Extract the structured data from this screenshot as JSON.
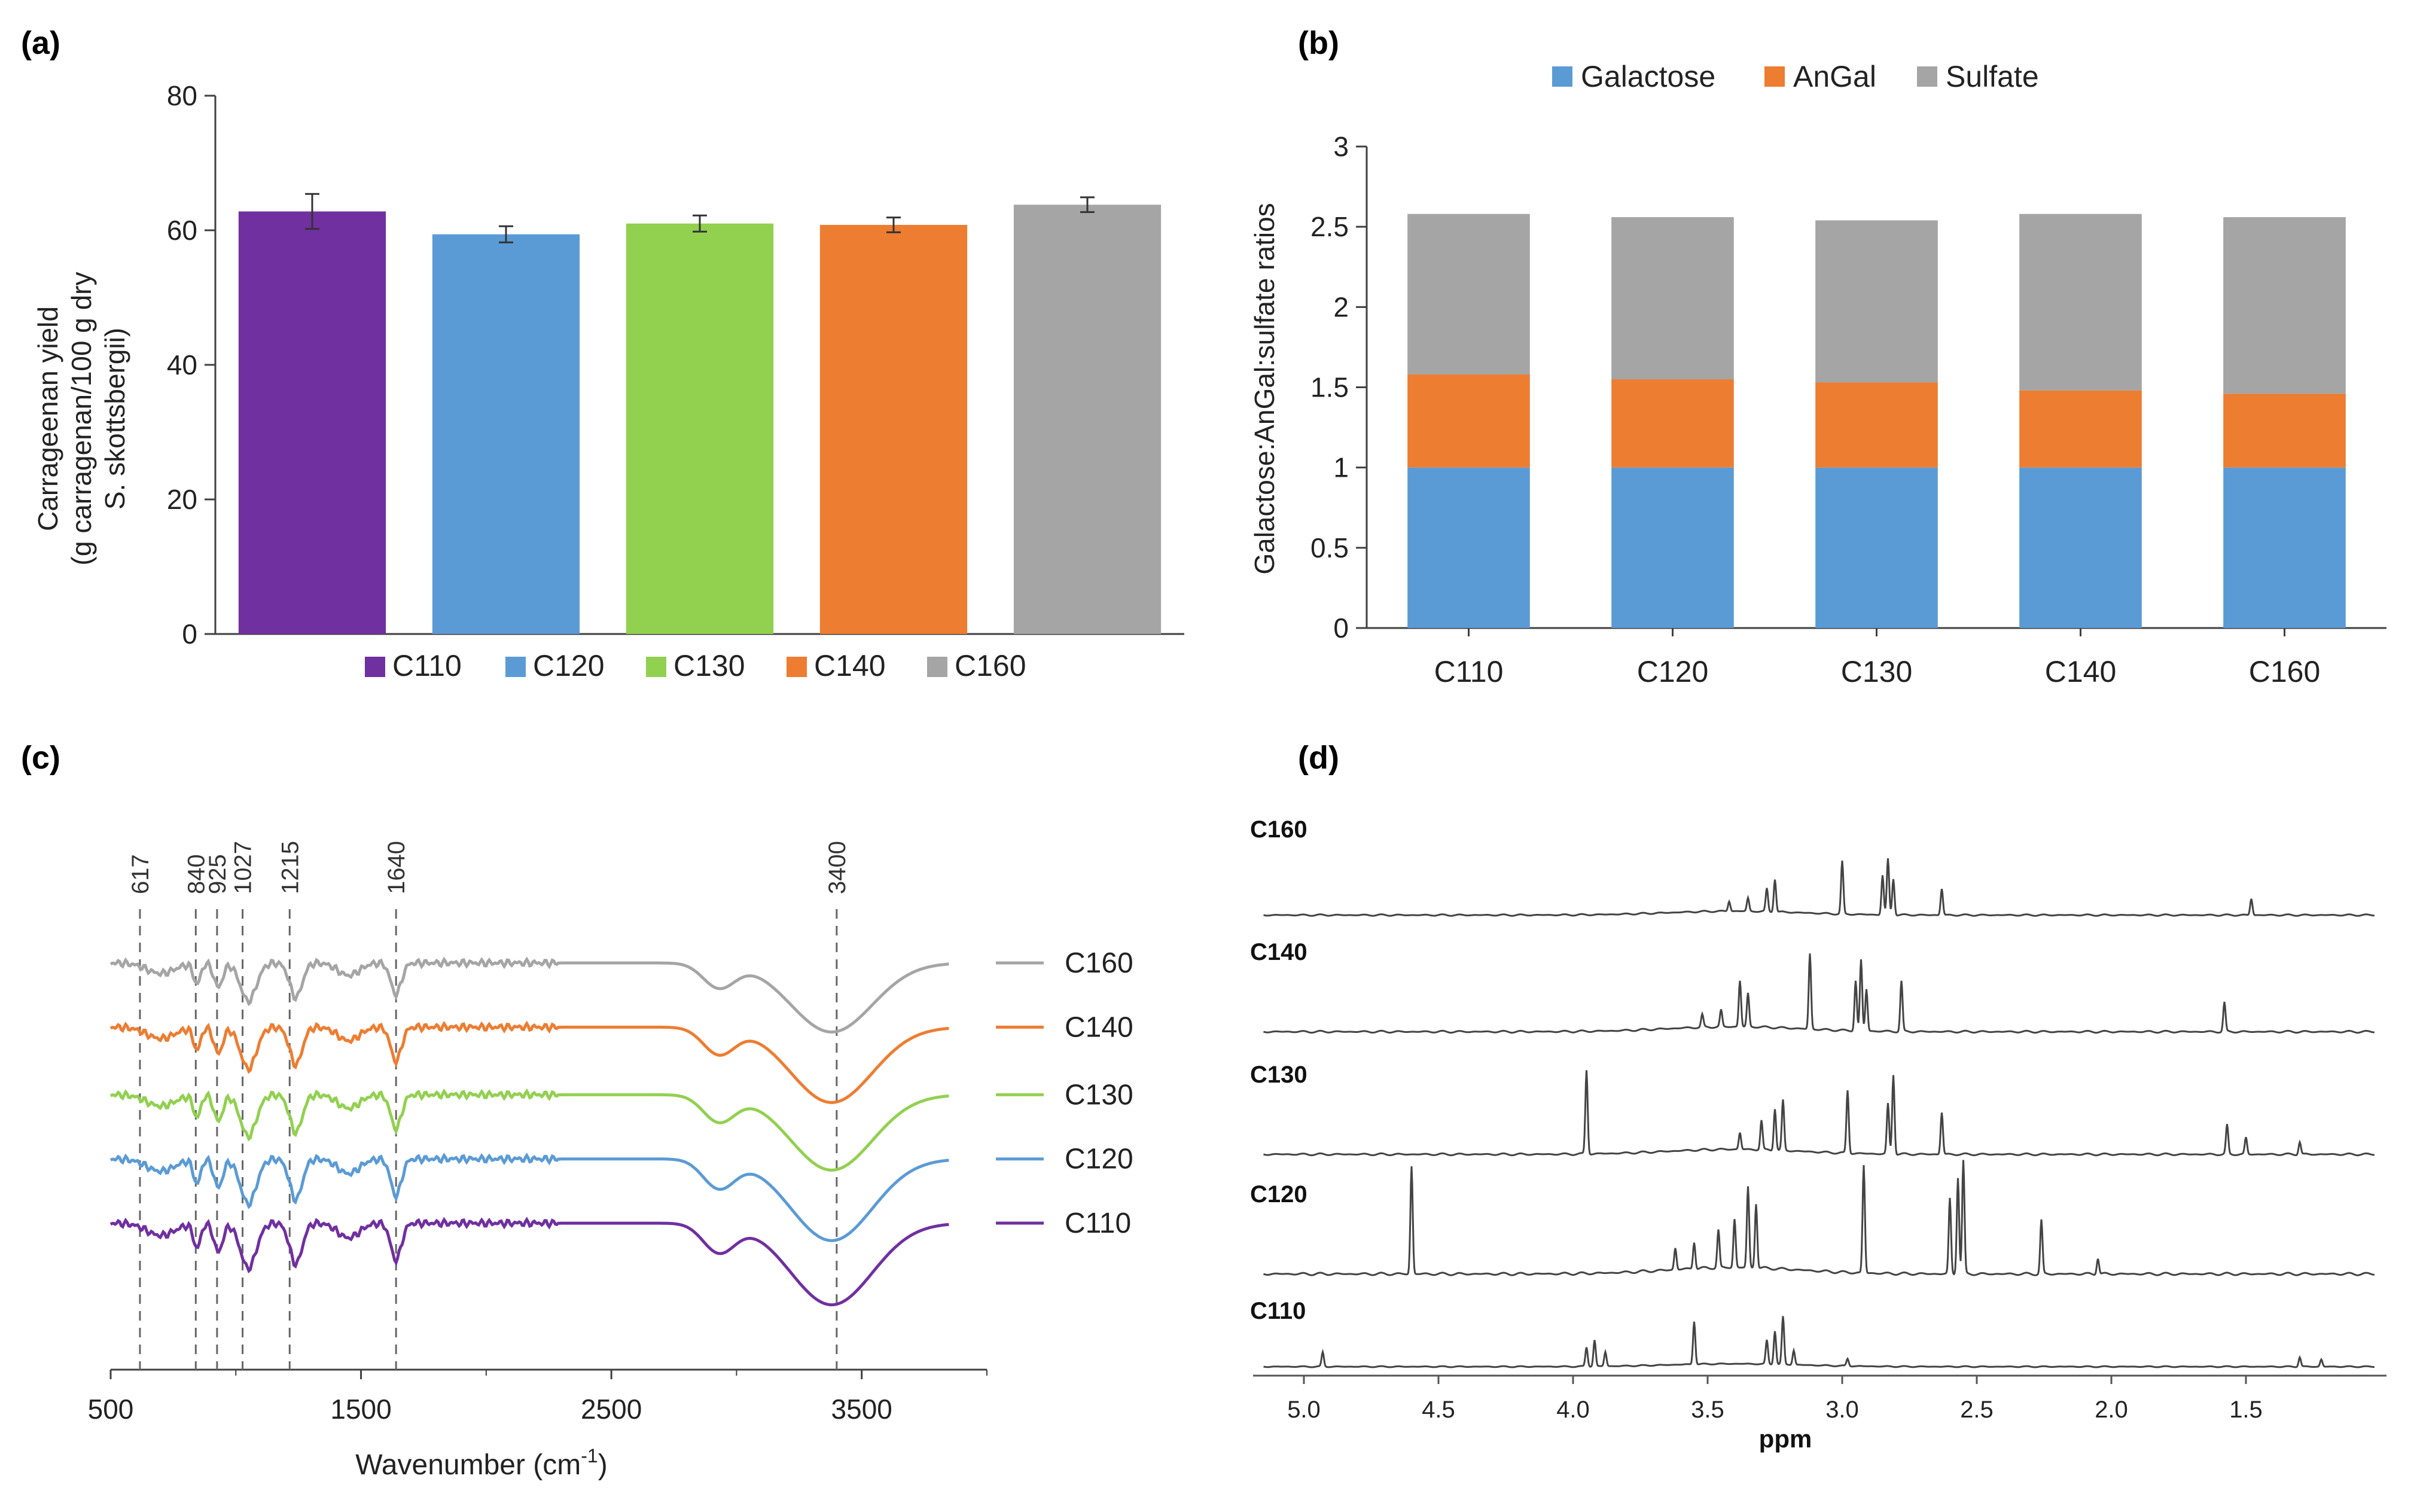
{
  "colors": {
    "c110": "#7030a0",
    "c120": "#5b9bd5",
    "c130": "#92d050",
    "c140": "#ed7d31",
    "c160": "#a5a5a5",
    "galactose": "#5b9bd5",
    "angal": "#ed7d31",
    "sulfate": "#a5a5a5",
    "axis": "#404040",
    "guide": "#666666",
    "nmr": "#444444"
  },
  "panel_labels": {
    "a": "(a)",
    "b": "(b)",
    "c": "(c)",
    "d": "(d)"
  },
  "chart_data": [
    {
      "id": "a",
      "type": "bar",
      "ylabel_lines": [
        "Carrageenan yield",
        "(g carragenan/100 g dry",
        "S. skottsbergii)"
      ],
      "ylim": [
        0,
        80
      ],
      "yticks": [
        "0",
        "20",
        "40",
        "60",
        "80"
      ],
      "categories": [
        "C110",
        "C120",
        "C130",
        "C140",
        "C160"
      ],
      "values": [
        62.8,
        59.4,
        61.0,
        60.8,
        63.8
      ],
      "errors": [
        2.6,
        1.2,
        1.2,
        1.1,
        1.1
      ],
      "legend": [
        "C110",
        "C120",
        "C130",
        "C140",
        "C160"
      ],
      "legend_position": "bottom"
    },
    {
      "id": "b",
      "type": "bar",
      "stacked": true,
      "ylabel": "Galactose:AnGal:sulfate ratios",
      "ylim": [
        0,
        3
      ],
      "yticks": [
        "0",
        "0.5",
        "1",
        "1.5",
        "2",
        "2.5",
        "3"
      ],
      "categories": [
        "C110",
        "C120",
        "C130",
        "C140",
        "C160"
      ],
      "series": [
        {
          "name": "Galactose",
          "values": [
            1.0,
            1.0,
            1.0,
            1.0,
            1.0
          ]
        },
        {
          "name": "AnGal",
          "values": [
            0.58,
            0.55,
            0.53,
            0.48,
            0.46
          ]
        },
        {
          "name": "Sulfate",
          "values": [
            1.0,
            1.01,
            1.01,
            1.1,
            1.1
          ]
        }
      ],
      "legend_position": "top"
    },
    {
      "id": "c",
      "type": "line",
      "xlabel": "Wavenumber (cm",
      "xlabel_sup": "-1",
      "xlabel_end": ")",
      "xlim": [
        500,
        4000
      ],
      "xticks": [
        500,
        1500,
        2500,
        3500
      ],
      "xtick_labels": [
        "500",
        "1500",
        "2500",
        "3500"
      ],
      "peak_markers": [
        617,
        840,
        925,
        1027,
        1215,
        1640,
        3400
      ],
      "peak_labels": [
        "617",
        "840",
        "925",
        "1027",
        "1215",
        "1640",
        "3400"
      ],
      "series": [
        {
          "name": "C160",
          "offset": 1.0,
          "depth": 0.55
        },
        {
          "name": "C140",
          "offset": 1.95,
          "depth": 0.6
        },
        {
          "name": "C130",
          "offset": 2.95,
          "depth": 0.6
        },
        {
          "name": "C120",
          "offset": 3.9,
          "depth": 0.65
        },
        {
          "name": "C110",
          "offset": 4.85,
          "depth": 0.65
        }
      ]
    },
    {
      "id": "d",
      "type": "line",
      "xlabel": "ppm",
      "xlim": [
        5.2,
        1.0
      ],
      "xticks": [
        5.0,
        4.5,
        4.0,
        3.5,
        3.0,
        2.5,
        2.0,
        1.5
      ],
      "xtick_labels": [
        "5.0",
        "4.5",
        "4.0",
        "3.5",
        "3.0",
        "2.5",
        "2.0",
        "1.5"
      ],
      "traces": [
        {
          "name": "C160",
          "peaks": [
            [
              3.25,
              0.5
            ],
            [
              3.28,
              0.35
            ],
            [
              3.35,
              0.2
            ],
            [
              3.42,
              0.15
            ],
            [
              3.0,
              0.8
            ],
            [
              2.85,
              0.6
            ],
            [
              2.83,
              0.85
            ],
            [
              2.81,
              0.55
            ],
            [
              2.63,
              0.4
            ],
            [
              1.48,
              0.25
            ]
          ]
        },
        {
          "name": "C140",
          "peaks": [
            [
              3.38,
              0.55
            ],
            [
              3.35,
              0.4
            ],
            [
              3.45,
              0.2
            ],
            [
              3.52,
              0.15
            ],
            [
              3.12,
              0.9
            ],
            [
              2.95,
              0.6
            ],
            [
              2.93,
              0.85
            ],
            [
              2.91,
              0.5
            ],
            [
              2.78,
              0.6
            ],
            [
              1.58,
              0.35
            ]
          ]
        },
        {
          "name": "C130",
          "peaks": [
            [
              3.95,
              1.0
            ],
            [
              3.25,
              0.5
            ],
            [
              3.22,
              0.6
            ],
            [
              3.3,
              0.35
            ],
            [
              3.38,
              0.2
            ],
            [
              2.98,
              0.75
            ],
            [
              2.83,
              0.6
            ],
            [
              2.81,
              0.95
            ],
            [
              2.63,
              0.5
            ],
            [
              1.57,
              0.35
            ],
            [
              1.5,
              0.2
            ],
            [
              1.3,
              0.15
            ]
          ]
        },
        {
          "name": "C120",
          "peaks": [
            [
              4.6,
              1.0
            ],
            [
              3.35,
              0.75
            ],
            [
              3.32,
              0.6
            ],
            [
              3.4,
              0.45
            ],
            [
              3.46,
              0.35
            ],
            [
              3.55,
              0.25
            ],
            [
              3.62,
              0.2
            ],
            [
              2.92,
              1.0
            ],
            [
              2.6,
              0.7
            ],
            [
              2.57,
              0.9
            ],
            [
              2.55,
              1.05
            ],
            [
              2.26,
              0.5
            ],
            [
              2.05,
              0.15
            ]
          ]
        },
        {
          "name": "C110",
          "peaks": [
            [
              4.93,
              0.3
            ],
            [
              3.92,
              0.55
            ],
            [
              3.95,
              0.4
            ],
            [
              3.88,
              0.3
            ],
            [
              3.55,
              0.9
            ],
            [
              3.25,
              0.7
            ],
            [
              3.28,
              0.5
            ],
            [
              3.22,
              1.0
            ],
            [
              3.18,
              0.3
            ],
            [
              2.98,
              0.15
            ],
            [
              1.3,
              0.2
            ],
            [
              1.22,
              0.15
            ]
          ]
        }
      ]
    }
  ]
}
